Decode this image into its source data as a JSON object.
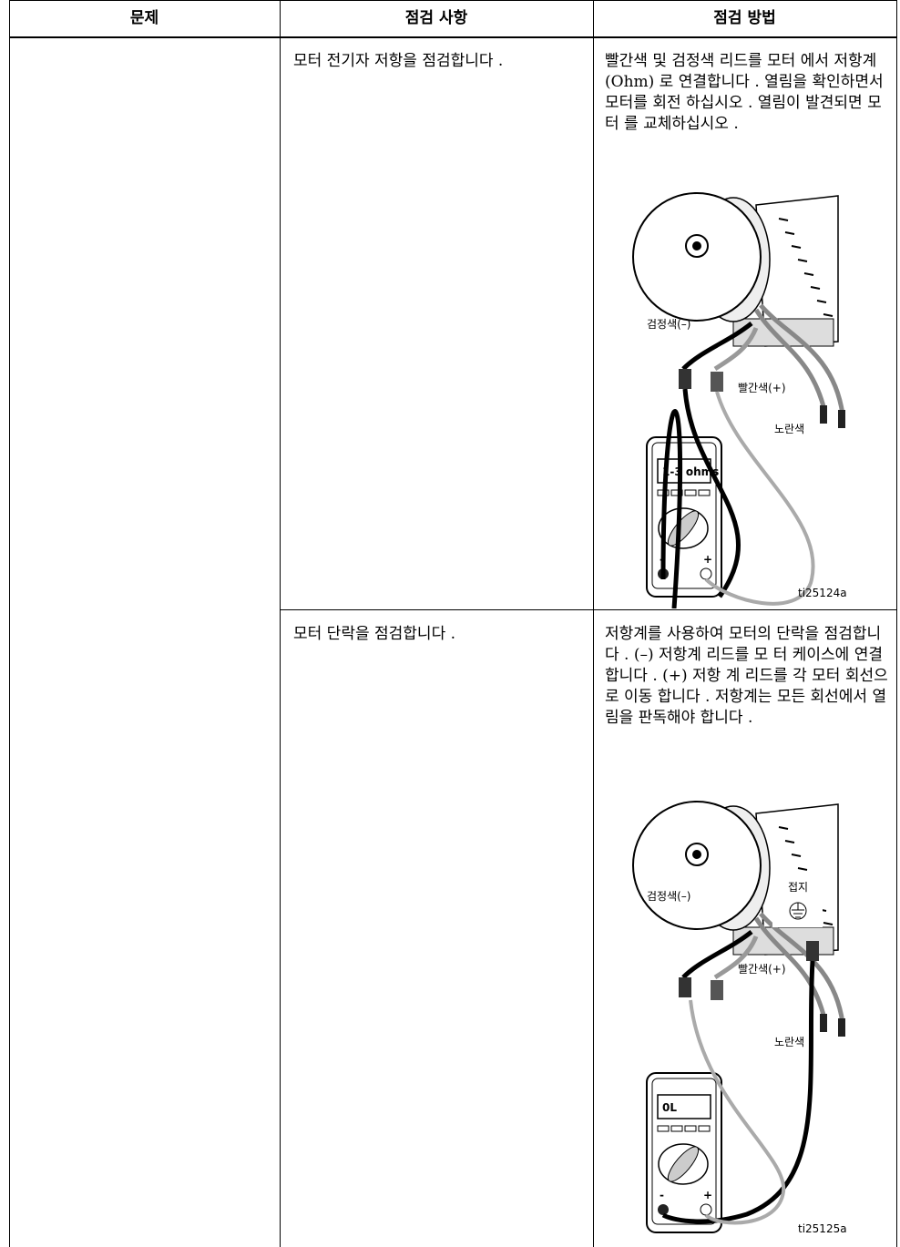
{
  "table": {
    "headers": [
      "문제",
      "점검 사항",
      "점검 방법"
    ],
    "rows": [
      {
        "check": "모터 전기자 저항을 점검합니다 .",
        "method": "빨간색 및 검정색 리드를 모터 에서 저항계 (Ohm) 로 연결합니다 . 열림을 확인하면서 모터를 회전 하십시오 . 열림이 발견되면 모터 를 교체하십시오 .",
        "figure": {
          "black_lead": "검정색(–)",
          "red_lead": "빨간색(+)",
          "yellow_leads": "노란색",
          "display": "1-3 ohms",
          "minus": "-",
          "plus": "+",
          "id": "ti25124a"
        }
      },
      {
        "check": "모터 단락을 점검합니다 .",
        "method": "저항계를 사용하여 모터의 단락을 점검합니다 . (–) 저항계 리드를 모 터 케이스에 연결합니다 . (+) 저항 계 리드를 각 모터 회선으로 이동 합니다 . 저항계는 모든 회선에서 열림을 판독해야 합니다 .",
        "figure": {
          "ground": "접지",
          "black_lead": "검정색(–)",
          "red_lead": "빨간색(+)",
          "yellow_leads": "노란색",
          "display": "0L",
          "minus": "-",
          "plus": "+",
          "id": "ti25125a"
        }
      }
    ]
  }
}
